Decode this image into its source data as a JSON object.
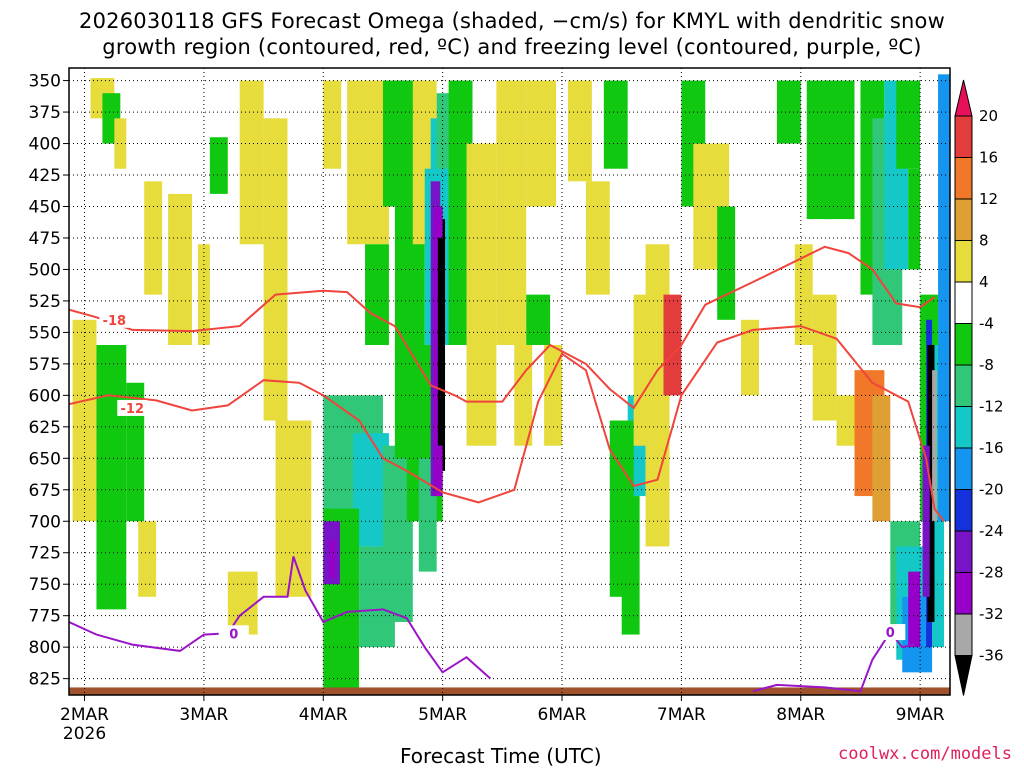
{
  "title": {
    "line1": "2026030118 GFS Forecast Omega (shaded, −cm/s) for KMYL with dendritic snow",
    "line2": "growth region (contoured, red, ºC) and freezing level (contoured, purple, ºC)"
  },
  "credit": "coolwx.com/models",
  "chart_data": {
    "type": "heatmap",
    "xlabel": "Forecast Time (UTC)",
    "ylabel": "",
    "x_ticks": [
      "2MAR",
      "3MAR",
      "4MAR",
      "5MAR",
      "6MAR",
      "7MAR",
      "8MAR",
      "9MAR"
    ],
    "x_tick_values": [
      0,
      1,
      2,
      3,
      4,
      5,
      6,
      7
    ],
    "x_sublabel": "2026",
    "xlim": [
      -0.13,
      7.25
    ],
    "y_ticks": [
      "350",
      "375",
      "400",
      "425",
      "450",
      "475",
      "500",
      "525",
      "550",
      "575",
      "600",
      "625",
      "650",
      "675",
      "700",
      "725",
      "750",
      "775",
      "800",
      "825"
    ],
    "ylim": [
      340,
      838
    ],
    "colorbar": {
      "ticks": [
        "20",
        "16",
        "12",
        "8",
        "4",
        "-4",
        "-8",
        "-12",
        "-16",
        "-20",
        "-24",
        "-28",
        "-32",
        "-36"
      ],
      "colors": [
        "#e8105a",
        "#e23c3c",
        "#f07828",
        "#dea032",
        "#e6dc3c",
        "#ffffff",
        "#10c810",
        "#30c878",
        "#14c8c8",
        "#1496f0",
        "#1432dc",
        "#7814c8",
        "#9600c8",
        "#a8a8a8",
        "#000000"
      ]
    },
    "grid": true,
    "dendritic_contours": [
      {
        "label": "-18",
        "points": [
          [
            -0.13,
            532
          ],
          [
            0.1,
            538
          ],
          [
            0.4,
            548
          ],
          [
            0.9,
            549
          ],
          [
            1.3,
            545
          ],
          [
            1.6,
            520
          ],
          [
            2.0,
            517
          ],
          [
            2.2,
            518
          ],
          [
            2.4,
            535
          ],
          [
            2.6,
            545
          ],
          [
            2.9,
            592
          ],
          [
            3.1,
            600
          ],
          [
            3.2,
            605
          ],
          [
            3.5,
            605
          ],
          [
            3.7,
            580
          ],
          [
            3.9,
            560
          ],
          [
            4.2,
            575
          ],
          [
            4.4,
            595
          ],
          [
            4.6,
            610
          ],
          [
            4.8,
            580
          ],
          [
            5.0,
            560
          ],
          [
            5.2,
            528
          ],
          [
            5.6,
            510
          ],
          [
            6.2,
            482
          ],
          [
            6.4,
            487
          ],
          [
            6.6,
            500
          ],
          [
            6.8,
            527
          ],
          [
            7.0,
            530
          ],
          [
            7.12,
            522
          ]
        ],
        "label_x": 0.25,
        "label_y": 540
      },
      {
        "label": "-12",
        "points": [
          [
            -0.13,
            607
          ],
          [
            0.2,
            600
          ],
          [
            0.6,
            604
          ],
          [
            0.9,
            612
          ],
          [
            1.2,
            608
          ],
          [
            1.5,
            588
          ],
          [
            1.8,
            590
          ],
          [
            2.0,
            600
          ],
          [
            2.3,
            620
          ],
          [
            2.5,
            650
          ],
          [
            2.7,
            660
          ],
          [
            3.0,
            677
          ],
          [
            3.3,
            685
          ],
          [
            3.6,
            675
          ],
          [
            3.8,
            605
          ],
          [
            4.0,
            567
          ],
          [
            4.2,
            580
          ],
          [
            4.4,
            643
          ],
          [
            4.6,
            672
          ],
          [
            4.8,
            667
          ],
          [
            5.0,
            600
          ],
          [
            5.3,
            558
          ],
          [
            5.6,
            548
          ],
          [
            6.0,
            545
          ],
          [
            6.3,
            555
          ],
          [
            6.6,
            590
          ],
          [
            6.9,
            605
          ],
          [
            7.05,
            650
          ],
          [
            7.12,
            690
          ],
          [
            7.2,
            700
          ]
        ],
        "label_x": 0.4,
        "label_y": 610
      }
    ],
    "freezing_level_contours": [
      {
        "label": "0",
        "points": [
          [
            -0.13,
            780
          ],
          [
            0.1,
            790
          ],
          [
            0.4,
            798
          ],
          [
            0.8,
            803
          ],
          [
            1.0,
            790
          ],
          [
            1.2,
            789
          ],
          [
            1.3,
            775
          ],
          [
            1.5,
            760
          ],
          [
            1.7,
            760
          ],
          [
            1.75,
            728
          ],
          [
            1.85,
            755
          ],
          [
            2.0,
            780
          ],
          [
            2.2,
            772
          ],
          [
            2.5,
            770
          ],
          [
            2.7,
            777
          ],
          [
            2.85,
            800
          ],
          [
            3.0,
            820
          ],
          [
            3.2,
            808
          ],
          [
            3.4,
            825
          ]
        ],
        "label_x": 1.25,
        "label_y": 789
      },
      {
        "label": "0",
        "points": [
          [
            5.6,
            835
          ],
          [
            5.8,
            830
          ],
          [
            6.2,
            832
          ],
          [
            6.5,
            835
          ],
          [
            6.6,
            810
          ],
          [
            6.75,
            788
          ],
          [
            6.85,
            800
          ],
          [
            6.95,
            798
          ]
        ],
        "label_x": 6.75,
        "label_y": 788
      }
    ],
    "terrain": {
      "color": "#a0522d",
      "top_pressure": 832
    }
  }
}
